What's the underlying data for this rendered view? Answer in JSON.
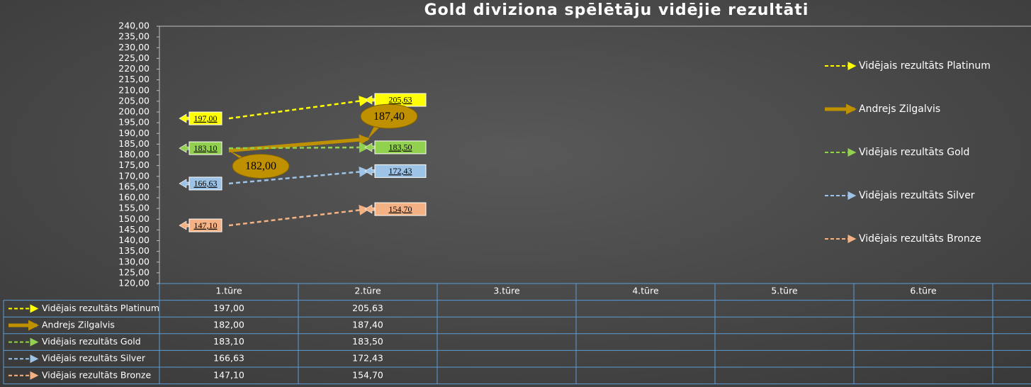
{
  "chart_data": {
    "type": "line",
    "title": "Gold diviziona spēlētāju vidējie rezultāti",
    "categories": [
      "1.tūre",
      "2.tūre",
      "3.tūre",
      "4.tūre",
      "5.tūre",
      "6.tūre",
      null
    ],
    "series": [
      {
        "name": "Vidējais rezultāts Platinum",
        "color": "#ffff00",
        "style": "dashed",
        "values": [
          197,
          205.63,
          null,
          null,
          null,
          null,
          null
        ],
        "value_labels": [
          "197,00",
          "205,63",
          null,
          null,
          null,
          null,
          null
        ]
      },
      {
        "name": "Andrejs Zilgalvis",
        "color": "#bf9000",
        "style": "solid",
        "values": [
          182,
          187.4,
          null,
          null,
          null,
          null,
          null
        ],
        "value_labels": [
          "182,00",
          "187,40",
          null,
          null,
          null,
          null,
          null
        ]
      },
      {
        "name": "Vidējais rezultāts Gold",
        "color": "#92d050",
        "style": "dashed",
        "values": [
          183.1,
          183.5,
          null,
          null,
          null,
          null,
          null
        ],
        "value_labels": [
          "183,10",
          "183,50",
          null,
          null,
          null,
          null,
          null
        ]
      },
      {
        "name": "Vidējais rezultāts Silver",
        "color": "#9dc3e6",
        "style": "dashed",
        "values": [
          166.63,
          172.43,
          null,
          null,
          null,
          null,
          null
        ],
        "value_labels": [
          "166,63",
          "172,43",
          null,
          null,
          null,
          null,
          null
        ]
      },
      {
        "name": "Vidējais rezultāts Bronze",
        "color": "#f4b183",
        "style": "dashed",
        "values": [
          147.1,
          154.7,
          null,
          null,
          null,
          null,
          null
        ],
        "value_labels": [
          "147,10",
          "154,70",
          null,
          null,
          null,
          null,
          null
        ]
      }
    ],
    "ylim": [
      120,
      240
    ],
    "yticks": [
      {
        "value": 120,
        "label": "120,00"
      },
      {
        "value": 125,
        "label": "125,00"
      },
      {
        "value": 130,
        "label": "130,00"
      },
      {
        "value": 135,
        "label": "135,00"
      },
      {
        "value": 140,
        "label": "140,00"
      },
      {
        "value": 145,
        "label": "145,00"
      },
      {
        "value": 150,
        "label": "150,00"
      },
      {
        "value": 155,
        "label": "155,00"
      },
      {
        "value": 160,
        "label": "160,00"
      },
      {
        "value": 165,
        "label": "165,00"
      },
      {
        "value": 170,
        "label": "170,00"
      },
      {
        "value": 175,
        "label": "175,00"
      },
      {
        "value": 180,
        "label": "180,00"
      },
      {
        "value": 185,
        "label": "185,00"
      },
      {
        "value": 190,
        "label": "190,00"
      },
      {
        "value": 195,
        "label": "195,00"
      },
      {
        "value": 200,
        "label": "200,00"
      },
      {
        "value": 205,
        "label": "205,00"
      },
      {
        "value": 210,
        "label": "210,00"
      },
      {
        "value": 215,
        "label": "215,00"
      },
      {
        "value": 220,
        "label": "220,00"
      },
      {
        "value": 225,
        "label": "225,00"
      },
      {
        "value": 230,
        "label": "230,00"
      },
      {
        "value": 235,
        "label": "235,00"
      },
      {
        "value": 240,
        "label": "240,00"
      }
    ],
    "grid": false,
    "legend": "right",
    "data_table": true
  }
}
